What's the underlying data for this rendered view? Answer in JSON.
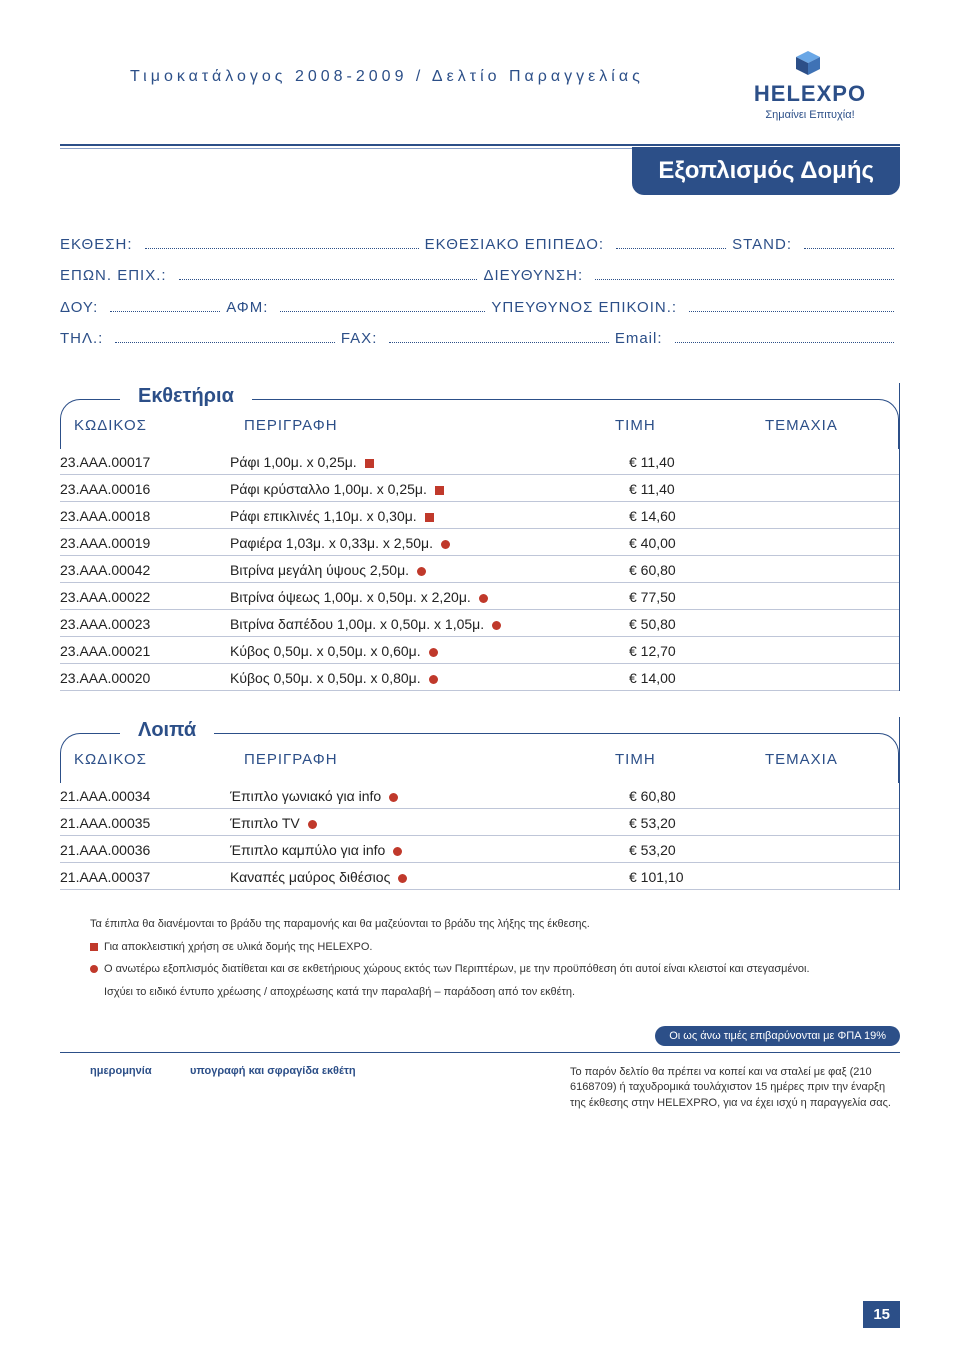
{
  "colors": {
    "brand": "#2c4f88",
    "accent_red": "#c0392b",
    "row_border": "#bfc6d8",
    "page_bg": "#ffffff",
    "text": "#2a2a2a"
  },
  "header": {
    "breadcrumb": "Τιμοκατάλογος 2008-2009 / Δελτίο Παραγγελίας",
    "section_title": "Εξοπλισμός Δομής",
    "logo_main": "HELEXPO",
    "logo_sub": "Σημαίνει Επιτυχία!"
  },
  "form": {
    "labels": {
      "ekthesi": "ΕΚΘΕΣΗ:",
      "epipedo": "ΕΚΘΕΣΙΑΚΟ ΕΠΙΠΕΔΟ:",
      "stand": "STAND:",
      "epon": "ΕΠΩΝ. ΕΠΙΧ.:",
      "dieyth": "ΔΙΕΥΘΥΝΣΗ:",
      "doy": "ΔΟΥ:",
      "afm": "ΑΦΜ:",
      "ypeuth": "ΥΠΕΥΘΥΝΟΣ ΕΠΙΚΟΙΝ.:",
      "thl": "ΤΗΛ.:",
      "fax": "FAX:",
      "email": "Email:"
    }
  },
  "table_headers": {
    "code": "ΚΩΔΙΚΟΣ",
    "desc": "ΠΕΡΙΓΡΑΦΗ",
    "price": "ΤΙΜΗ",
    "qty": "ΤΕΜΑΧΙΑ"
  },
  "groups": {
    "g1": {
      "title": "Εκθετήρια"
    },
    "g2": {
      "title": "Λοιπά"
    }
  },
  "rows_g1": [
    {
      "code": "23.ΑΑΑ.00017",
      "desc": "Ράφι 1,00μ. x 0,25μ.",
      "marker": "square",
      "price": "€ 11,40"
    },
    {
      "code": "23.ΑΑΑ.00016",
      "desc": "Ράφι κρύσταλλο 1,00μ. x 0,25μ.",
      "marker": "square",
      "price": "€ 11,40"
    },
    {
      "code": "23.ΑΑΑ.00018",
      "desc": "Ράφι επικλινές 1,10μ. x 0,30μ.",
      "marker": "square",
      "price": "€ 14,60"
    },
    {
      "code": "23.ΑΑΑ.00019",
      "desc": "Ραφιέρα 1,03μ. x 0,33μ. x 2,50μ.",
      "marker": "dot",
      "price": "€ 40,00"
    },
    {
      "code": "23.ΑΑΑ.00042",
      "desc": "Βιτρίνα μεγάλη ύψους 2,50μ.",
      "marker": "dot",
      "price": "€ 60,80"
    },
    {
      "code": "23.ΑΑΑ.00022",
      "desc": "Βιτρίνα όψεως 1,00μ. x 0,50μ. x 2,20μ.",
      "marker": "dot",
      "price": "€ 77,50"
    },
    {
      "code": "23.ΑΑΑ.00023",
      "desc": "Βιτρίνα δαπέδου 1,00μ. x 0,50μ. x 1,05μ.",
      "marker": "dot",
      "price": "€ 50,80"
    },
    {
      "code": "23.ΑΑΑ.00021",
      "desc": "Κύβος 0,50μ. x 0,50μ. x 0,60μ.",
      "marker": "dot",
      "price": "€ 12,70"
    },
    {
      "code": "23.ΑΑΑ.00020",
      "desc": "Κύβος 0,50μ. x 0,50μ. x 0,80μ.",
      "marker": "dot",
      "price": "€ 14,00"
    }
  ],
  "rows_g2": [
    {
      "code": "21.ΑΑΑ.00034",
      "desc": "Έπιπλο γωνιακό για info",
      "marker": "dot",
      "price": "€ 60,80"
    },
    {
      "code": "21.ΑΑΑ.00035",
      "desc": "Έπιπλο TV",
      "marker": "dot",
      "price": "€ 53,20"
    },
    {
      "code": "21.ΑΑΑ.00036",
      "desc": "Έπιπλο καμπύλο για info",
      "marker": "dot",
      "price": "€ 53,20"
    },
    {
      "code": "21.ΑΑΑ.00037",
      "desc": "Καναπές μαύρος διθέσιος",
      "marker": "dot",
      "price": "€ 101,10"
    }
  ],
  "notes": {
    "intro": "Τα έπιπλα θα διανέμονται το βράδυ της παραμονής και θα μαζεύονται το βράδυ της λήξης της έκθεσης.",
    "sq": "Για αποκλειστική χρήση σε υλικά δομής της HELEXPO.",
    "dot1": "Ο ανωτέρω εξοπλισμός διατίθεται και σε εκθετήριους χώρους εκτός των Περιπτέρων, με την προϋπόθεση ότι αυτοί είναι κλειστοί και στεγασμένοι.",
    "dot2": "Ισχύει το ειδικό έντυπο χρέωσης / αποχρέωσης κατά την παραλαβή – παράδοση από τον εκθέτη."
  },
  "footer": {
    "vat": "Οι ως άνω τιμές επιβαρύνονται με ΦΠΑ 19%",
    "date_label": "ημερομηνία",
    "sign_label": "υπογραφή και σφραγίδα εκθέτη",
    "disclaimer": "Το παρόν δελτίο θα πρέπει να κοπεί και να σταλεί με φαξ (210 6168709) ή ταχυδρομικά τουλάχιστον 15 ημέρες πριν την έναρξη της έκθεσης στην HELEXPRO, για να έχει ισχύ η παραγγελία σας.",
    "page_number": "15"
  }
}
